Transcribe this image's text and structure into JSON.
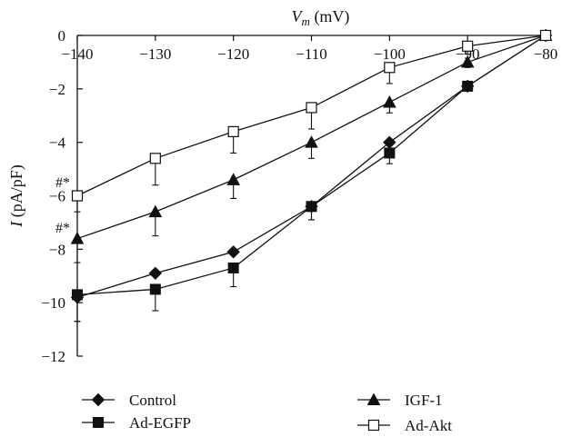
{
  "chart_data": {
    "type": "line",
    "xlabel_main": "V",
    "xlabel_sub": "m",
    "xlabel_unit": "(mV)",
    "ylabel_main": "I",
    "ylabel_unit": "(pA/pF)",
    "xlim": [
      -140,
      -80
    ],
    "ylim": [
      -12,
      0
    ],
    "x_ticks": [
      -140,
      -130,
      -120,
      -110,
      -100,
      -90,
      -80
    ],
    "y_ticks": [
      0,
      -2,
      -4,
      -6,
      -8,
      -10,
      -12
    ],
    "x": [
      -140,
      -130,
      -120,
      -110,
      -100,
      -90,
      -80
    ],
    "series": [
      {
        "name": "Control",
        "marker": "diamond",
        "values": [
          -9.8,
          -8.9,
          -8.1,
          -6.4,
          -4.0,
          -1.9,
          0.0
        ],
        "err": [
          0.9,
          0.0,
          0.0,
          0.5,
          0.4,
          0.0,
          0.0
        ]
      },
      {
        "name": "Ad-EGFP",
        "marker": "square-filled",
        "values": [
          -9.7,
          -9.5,
          -8.7,
          -6.4,
          -4.4,
          -1.9,
          0.0
        ],
        "err": [
          1.0,
          0.8,
          0.7,
          0.5,
          0.4,
          0.0,
          0.0
        ]
      },
      {
        "name": "IGF-1",
        "marker": "triangle-filled",
        "values": [
          -7.6,
          -6.6,
          -5.4,
          -4.0,
          -2.5,
          -1.0,
          0.0
        ],
        "err": [
          0.9,
          0.9,
          0.7,
          0.6,
          0.4,
          0.2,
          0.0
        ]
      },
      {
        "name": "Ad-Akt",
        "marker": "square-open",
        "values": [
          -6.0,
          -4.6,
          -3.6,
          -2.7,
          -1.2,
          -0.4,
          0.0
        ],
        "err": [
          0.6,
          1.0,
          0.8,
          0.8,
          0.6,
          0.3,
          0.0
        ]
      }
    ],
    "annotations": [
      {
        "text": "#*",
        "x": -140,
        "y": -5.5
      },
      {
        "text": "#*",
        "x": -140,
        "y": -7.2
      }
    ],
    "legend_placement": "bottom",
    "grid": false
  }
}
